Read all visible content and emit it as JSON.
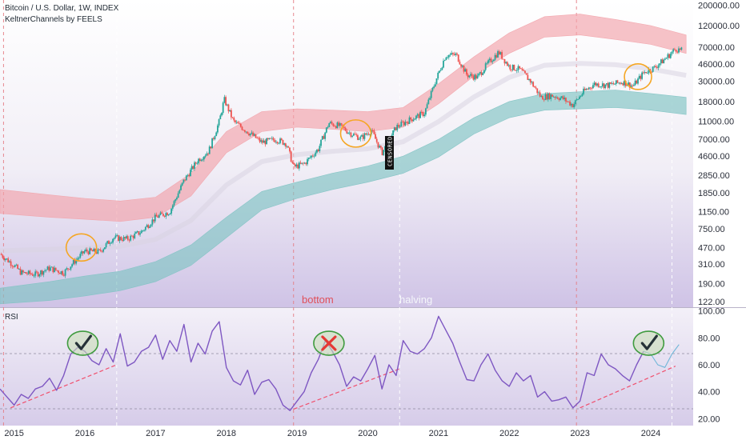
{
  "header": {
    "title": "Bitcoin / U.S. Dollar, 1W, INDEX",
    "indicator": "KeltnerChannels by FEELS",
    "rsi_label": "RSI"
  },
  "annotations": {
    "bottom": "bottom",
    "halving": "halving",
    "censored": "CENSORED"
  },
  "colors": {
    "upper_band": "#f2a3aa",
    "lower_band": "#7fc3c3",
    "candle_up": "#26a69a",
    "candle_down": "#ef5350",
    "rsi_line": "#7e57c2",
    "circle": "#f5a623",
    "check": "#2e7d32",
    "cross": "#e53935",
    "trendline": "#f0506e"
  },
  "chart_data": [
    {
      "type": "candlestick",
      "title": "Bitcoin / U.S. Dollar, 1W, INDEX",
      "y_scale": "log",
      "y_ticks": [
        200000,
        120000,
        70000,
        46000,
        30000,
        18000,
        11000,
        7000,
        4600,
        2850,
        1850,
        1150,
        750,
        470,
        310,
        190,
        122
      ],
      "y_tick_labels": [
        "200000.00",
        "120000.00",
        "70000.00",
        "46000.00",
        "30000.00",
        "18000.00",
        "11000.00",
        "7000.00",
        "4600.00",
        "2850.00",
        "1850.00",
        "1150.00",
        "750.00",
        "470.00",
        "310.00",
        "190.00",
        "122.00"
      ],
      "ylim": [
        110,
        210000
      ],
      "x_tick_labels": [
        "2015",
        "2016",
        "2017",
        "2018",
        "2019",
        "2020",
        "2021",
        "2022",
        "2023",
        "2024"
      ],
      "x_ticks": [
        2015.0,
        2016.0,
        2017.0,
        2018.0,
        2019.0,
        2020.0,
        2021.0,
        2022.0,
        2023.0,
        2024.0
      ],
      "xlim": [
        2014.8,
        2024.6
      ],
      "price_series": {
        "name": "BTCUSD",
        "x": [
          2014.8,
          2015.0,
          2015.1,
          2015.3,
          2015.5,
          2015.7,
          2015.85,
          2016.0,
          2016.2,
          2016.4,
          2016.6,
          2016.8,
          2017.0,
          2017.2,
          2017.4,
          2017.6,
          2017.75,
          2017.9,
          2017.97,
          2018.1,
          2018.3,
          2018.5,
          2018.7,
          2018.85,
          2018.95,
          2019.1,
          2019.3,
          2019.45,
          2019.6,
          2019.75,
          2019.9,
          2020.05,
          2020.2,
          2020.4,
          2020.6,
          2020.8,
          2020.95,
          2021.1,
          2021.25,
          2021.4,
          2021.55,
          2021.7,
          2021.85,
          2022.0,
          2022.15,
          2022.3,
          2022.45,
          2022.6,
          2022.75,
          2022.9,
          2023.05,
          2023.2,
          2023.4,
          2023.6,
          2023.75,
          2023.9,
          2024.05,
          2024.2,
          2024.35,
          2024.45
        ],
        "close": [
          400,
          300,
          250,
          240,
          280,
          250,
          330,
          430,
          420,
          600,
          580,
          700,
          1000,
          1150,
          2500,
          4200,
          5200,
          11000,
          19000,
          11000,
          8500,
          6500,
          7000,
          6300,
          3500,
          3800,
          5500,
          10500,
          9800,
          8200,
          7200,
          8800,
          5000,
          9500,
          11500,
          13500,
          29000,
          57000,
          58000,
          35000,
          33000,
          47000,
          62000,
          43000,
          40000,
          30000,
          20000,
          21000,
          19500,
          16500,
          23000,
          28000,
          27000,
          29500,
          26500,
          37000,
          42000,
          52000,
          67000,
          64000
        ]
      },
      "keltner_upper": {
        "name": "KeltnerChannels by FEELS upper",
        "x": [
          2014.8,
          2015.5,
          2016.0,
          2016.5,
          2017.0,
          2017.5,
          2018.0,
          2018.5,
          2019.0,
          2019.5,
          2020.0,
          2020.5,
          2021.0,
          2021.5,
          2022.0,
          2022.5,
          2023.0,
          2023.5,
          2024.0,
          2024.5
        ],
        "top": [
          2000,
          1750,
          1600,
          1500,
          1650,
          3000,
          8500,
          14000,
          15000,
          14500,
          14000,
          15500,
          28000,
          55000,
          100000,
          150000,
          160000,
          140000,
          120000,
          95000
        ],
        "bottom": [
          1100,
          1000,
          950,
          900,
          1000,
          1700,
          5000,
          8500,
          9500,
          9000,
          8500,
          9500,
          17000,
          34000,
          60000,
          90000,
          95000,
          85000,
          75000,
          60000
        ]
      },
      "keltner_lower": {
        "name": "KeltnerChannels by FEELS lower",
        "x": [
          2014.8,
          2015.5,
          2016.0,
          2016.5,
          2017.0,
          2017.5,
          2018.0,
          2018.5,
          2019.0,
          2019.5,
          2020.0,
          2020.5,
          2021.0,
          2021.5,
          2022.0,
          2022.5,
          2023.0,
          2023.5,
          2024.0,
          2024.5
        ],
        "top": [
          170,
          200,
          230,
          260,
          330,
          500,
          1000,
          1900,
          2400,
          3000,
          3600,
          4600,
          7000,
          12000,
          18000,
          22000,
          23000,
          24000,
          22000,
          20000
        ],
        "bottom": [
          115,
          125,
          140,
          160,
          200,
          300,
          600,
          1200,
          1600,
          2000,
          2400,
          3000,
          4500,
          8000,
          12000,
          14500,
          15000,
          15500,
          14500,
          13000
        ]
      }
    },
    {
      "type": "line",
      "title": "RSI",
      "y_ticks": [
        100,
        80,
        60,
        40,
        20
      ],
      "y_tick_labels": [
        "100.00",
        "80.00",
        "60.00",
        "40.00",
        "20.00"
      ],
      "ylim": [
        16,
        98
      ],
      "series": [
        {
          "name": "RSI",
          "x": [
            2014.8,
            2014.9,
            2015.0,
            2015.1,
            2015.2,
            2015.3,
            2015.4,
            2015.5,
            2015.6,
            2015.7,
            2015.8,
            2015.9,
            2016.0,
            2016.1,
            2016.2,
            2016.3,
            2016.4,
            2016.5,
            2016.6,
            2016.7,
            2016.8,
            2016.9,
            2017.0,
            2017.1,
            2017.2,
            2017.3,
            2017.4,
            2017.5,
            2017.6,
            2017.7,
            2017.8,
            2017.9,
            2018.0,
            2018.1,
            2018.2,
            2018.3,
            2018.4,
            2018.5,
            2018.6,
            2018.7,
            2018.8,
            2018.9,
            2019.0,
            2019.1,
            2019.2,
            2019.3,
            2019.4,
            2019.5,
            2019.6,
            2019.7,
            2019.8,
            2019.9,
            2020.0,
            2020.1,
            2020.2,
            2020.3,
            2020.4,
            2020.5,
            2020.6,
            2020.7,
            2020.8,
            2020.9,
            2021.0,
            2021.1,
            2021.2,
            2021.3,
            2021.4,
            2021.5,
            2021.6,
            2021.7,
            2021.8,
            2021.9,
            2022.0,
            2022.1,
            2022.2,
            2022.3,
            2022.4,
            2022.5,
            2022.6,
            2022.7,
            2022.8,
            2022.9,
            2023.0,
            2023.1,
            2023.2,
            2023.3,
            2023.4,
            2023.5,
            2023.6,
            2023.7,
            2023.8,
            2023.9
          ],
          "values": [
            42,
            36,
            30,
            38,
            35,
            42,
            44,
            50,
            41,
            52,
            68,
            73,
            70,
            63,
            60,
            72,
            62,
            83,
            59,
            62,
            70,
            73,
            82,
            64,
            78,
            70,
            90,
            62,
            76,
            68,
            85,
            92,
            58,
            48,
            45,
            56,
            38,
            47,
            49,
            42,
            30,
            26,
            33,
            40,
            54,
            64,
            78,
            70,
            60,
            44,
            51,
            48,
            57,
            67,
            42,
            60,
            52,
            78,
            70,
            68,
            72,
            80,
            96,
            86,
            76,
            62,
            49,
            48,
            60,
            68,
            56,
            48,
            44,
            54,
            48,
            52,
            36,
            40,
            33,
            34,
            36,
            28,
            33,
            54,
            52,
            68,
            60,
            57,
            52,
            48,
            60,
            70
          ]
        },
        {
          "name": "projection",
          "x": [
            2023.9,
            2024.0,
            2024.1,
            2024.2,
            2024.3,
            2024.4
          ],
          "values": [
            70,
            68,
            60,
            58,
            68,
            75
          ]
        }
      ],
      "trendlines": [
        {
          "x": [
            2014.95,
            2016.45
          ],
          "values": [
            28,
            60
          ]
        },
        {
          "x": [
            2018.95,
            2020.45
          ],
          "values": [
            27,
            57
          ]
        },
        {
          "x": [
            2023.0,
            2024.35
          ],
          "values": [
            28,
            59
          ]
        }
      ],
      "vlines_x": [
        2014.85,
        2016.45,
        2018.95,
        2020.45,
        2022.95,
        2024.3
      ],
      "markers": [
        {
          "type": "check",
          "x": 2015.97,
          "y": 76
        },
        {
          "type": "cross",
          "x": 2019.45,
          "y": 76
        },
        {
          "type": "check",
          "x": 2023.97,
          "y": 76
        }
      ]
    }
  ]
}
